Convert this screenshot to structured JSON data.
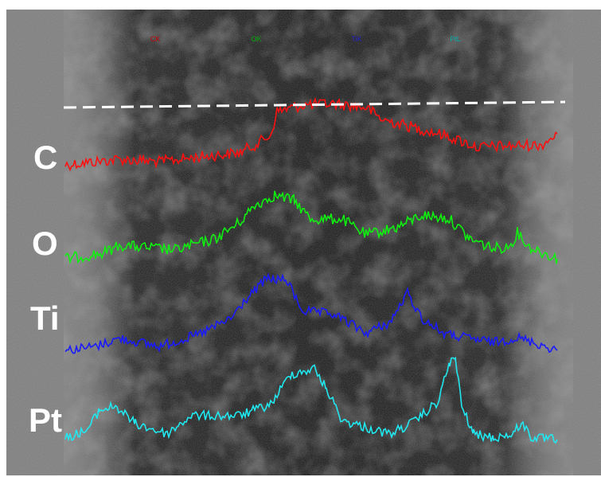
{
  "legend": {
    "items": [
      "CK",
      "OK",
      "TiK",
      "PtL"
    ]
  },
  "labels": [
    "C",
    "O",
    "Ti",
    "Pt"
  ]
}
